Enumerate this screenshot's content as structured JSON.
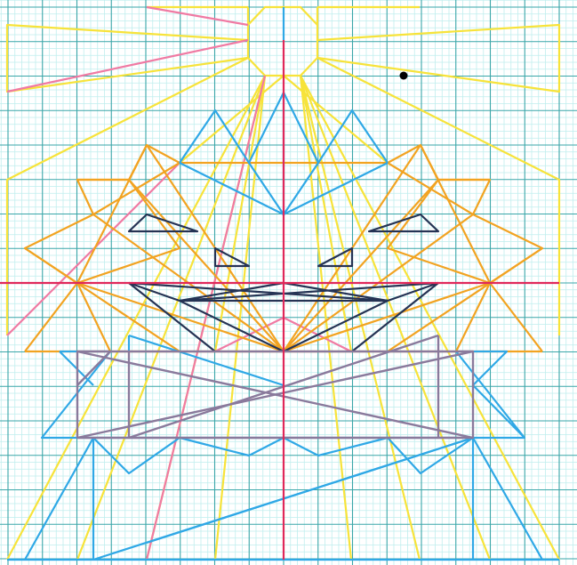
{
  "colors": {
    "background": "#ffffff",
    "grid_minor": "#bfeeee",
    "grid_major": "#3aa6a8",
    "axis": "#e0285a",
    "yellow": "#f7e33a",
    "orange": "#f2a321",
    "blue": "#2fa8e6",
    "navy": "#253354",
    "purple": "#8a7a9c",
    "pink": "#f07aa3",
    "point": "#000000"
  },
  "figure": {
    "layers": [
      "yellow-figure",
      "pink-lines",
      "orange-figure",
      "blue-figure",
      "navy-figure",
      "purple-figure",
      "axis-lines",
      "point"
    ]
  }
}
